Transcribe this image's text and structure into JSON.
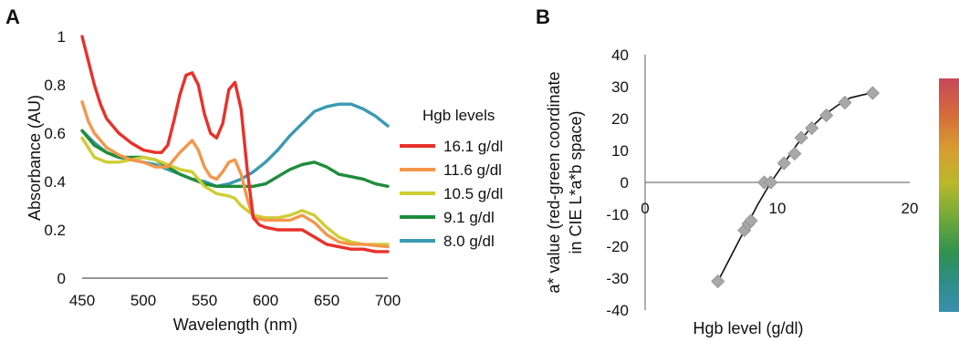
{
  "panels": {
    "a": {
      "letter": "A"
    },
    "b": {
      "letter": "B"
    }
  },
  "chart_data": [
    {
      "type": "line",
      "panel": "A",
      "xlabel": "Wavelength (nm)",
      "ylabel": "Absorbance (AU)",
      "xlim": [
        450,
        700
      ],
      "ylim": [
        0,
        1
      ],
      "xticks": [
        450,
        500,
        550,
        600,
        650,
        700
      ],
      "yticks": [
        0,
        0.2,
        0.4,
        0.6,
        0.8,
        1
      ],
      "xtick_labels": [
        "450",
        "500",
        "550",
        "600",
        "650",
        "700"
      ],
      "ytick_labels": [
        "0",
        "0.2",
        "0.4",
        "0.6",
        "0.8",
        "1"
      ],
      "legend_title": "Hgb levels",
      "legend_position": "right",
      "grid": false,
      "series": [
        {
          "name": "16.1 g/dl",
          "color": "#e8312a",
          "x": [
            450,
            455,
            460,
            465,
            470,
            480,
            490,
            500,
            510,
            515,
            520,
            525,
            530,
            535,
            540,
            545,
            550,
            555,
            560,
            565,
            570,
            575,
            580,
            585,
            590,
            595,
            600,
            610,
            620,
            630,
            640,
            650,
            660,
            670,
            680,
            690,
            700
          ],
          "y": [
            1.0,
            0.9,
            0.8,
            0.72,
            0.66,
            0.6,
            0.56,
            0.53,
            0.52,
            0.52,
            0.55,
            0.65,
            0.76,
            0.84,
            0.85,
            0.8,
            0.68,
            0.6,
            0.58,
            0.64,
            0.78,
            0.81,
            0.7,
            0.45,
            0.25,
            0.22,
            0.21,
            0.2,
            0.2,
            0.2,
            0.17,
            0.14,
            0.13,
            0.12,
            0.12,
            0.11,
            0.11
          ]
        },
        {
          "name": "11.6 g/dl",
          "color": "#f4964a",
          "x": [
            450,
            455,
            460,
            470,
            480,
            490,
            500,
            510,
            520,
            530,
            540,
            545,
            550,
            555,
            560,
            565,
            570,
            575,
            580,
            585,
            590,
            600,
            610,
            620,
            630,
            640,
            650,
            660,
            670,
            680,
            690,
            700
          ],
          "y": [
            0.73,
            0.65,
            0.6,
            0.54,
            0.51,
            0.49,
            0.48,
            0.46,
            0.46,
            0.52,
            0.57,
            0.53,
            0.46,
            0.42,
            0.41,
            0.44,
            0.48,
            0.49,
            0.43,
            0.33,
            0.25,
            0.24,
            0.24,
            0.24,
            0.26,
            0.23,
            0.18,
            0.15,
            0.14,
            0.14,
            0.135,
            0.13
          ]
        },
        {
          "name": "10.5 g/dl",
          "color": "#cfcd34",
          "x": [
            450,
            460,
            470,
            480,
            490,
            500,
            510,
            520,
            530,
            540,
            550,
            560,
            570,
            575,
            580,
            590,
            600,
            610,
            620,
            630,
            640,
            650,
            660,
            670,
            680,
            690,
            700
          ],
          "y": [
            0.58,
            0.5,
            0.48,
            0.48,
            0.49,
            0.5,
            0.49,
            0.47,
            0.45,
            0.44,
            0.38,
            0.35,
            0.34,
            0.33,
            0.3,
            0.26,
            0.25,
            0.25,
            0.26,
            0.28,
            0.26,
            0.21,
            0.17,
            0.15,
            0.14,
            0.14,
            0.14
          ]
        },
        {
          "name": "9.1 g/dl",
          "color": "#1e8c3c",
          "x": [
            450,
            460,
            470,
            480,
            490,
            500,
            510,
            520,
            530,
            540,
            550,
            560,
            570,
            580,
            590,
            600,
            610,
            620,
            630,
            640,
            650,
            660,
            670,
            680,
            690,
            700
          ],
          "y": [
            0.61,
            0.55,
            0.52,
            0.5,
            0.5,
            0.5,
            0.49,
            0.46,
            0.43,
            0.41,
            0.39,
            0.38,
            0.38,
            0.38,
            0.38,
            0.39,
            0.42,
            0.45,
            0.47,
            0.48,
            0.46,
            0.43,
            0.42,
            0.41,
            0.39,
            0.38
          ]
        },
        {
          "name": "8.0 g/dl",
          "color": "#3a9ab2",
          "x": [
            450,
            460,
            470,
            480,
            490,
            500,
            510,
            520,
            530,
            540,
            550,
            560,
            570,
            580,
            590,
            600,
            610,
            620,
            630,
            640,
            650,
            660,
            670,
            680,
            690,
            700
          ],
          "y": [
            0.61,
            0.56,
            0.52,
            0.5,
            0.49,
            0.48,
            0.47,
            0.45,
            0.43,
            0.41,
            0.4,
            0.38,
            0.39,
            0.41,
            0.44,
            0.48,
            0.53,
            0.59,
            0.64,
            0.69,
            0.71,
            0.72,
            0.72,
            0.7,
            0.67,
            0.63
          ]
        }
      ]
    },
    {
      "type": "scatter",
      "panel": "B",
      "xlabel": "Hgb level (g/dl)",
      "ylabel": "a* value (red-green coordinate in CIE L*a*b space)",
      "ylabel_lines": [
        "a* value (red-green coordinate",
        "in CIE L*a*b space)"
      ],
      "xlim": [
        0,
        20
      ],
      "ylim": [
        -40,
        40
      ],
      "xticks": [
        0,
        10,
        20
      ],
      "yticks": [
        -40,
        -30,
        -20,
        -10,
        0,
        10,
        20,
        30,
        40
      ],
      "xtick_labels": [
        "0",
        "10",
        "20"
      ],
      "ytick_labels": [
        "-40",
        "-30",
        "-20",
        "-10",
        "0",
        "10",
        "20",
        "30",
        "40"
      ],
      "grid": false,
      "marker_color": "#a8a8a8",
      "points": {
        "x": [
          5.5,
          7.5,
          7.8,
          8.0,
          9.0,
          9.5,
          10.5,
          11.3,
          11.8,
          12.6,
          13.7,
          15.1,
          17.2
        ],
        "y": [
          -31,
          -15,
          -13,
          -12,
          0,
          0,
          6,
          9,
          14,
          17,
          21,
          25,
          28
        ]
      },
      "trendline": {
        "x": [
          5.5,
          6.5,
          7.5,
          8.5,
          9.5,
          10.5,
          11.5,
          12.5,
          13.5,
          14.5,
          15.5,
          16.5,
          17.2
        ],
        "y": [
          -31,
          -23,
          -15,
          -7,
          0,
          6,
          12,
          17,
          21,
          24,
          26.5,
          27.5,
          28
        ]
      },
      "color_scale": [
        "#c8485a",
        "#d46a3c",
        "#d89c30",
        "#b9b82a",
        "#6fa93a",
        "#2f9050",
        "#2e8e8c",
        "#3a8fae"
      ]
    }
  ]
}
